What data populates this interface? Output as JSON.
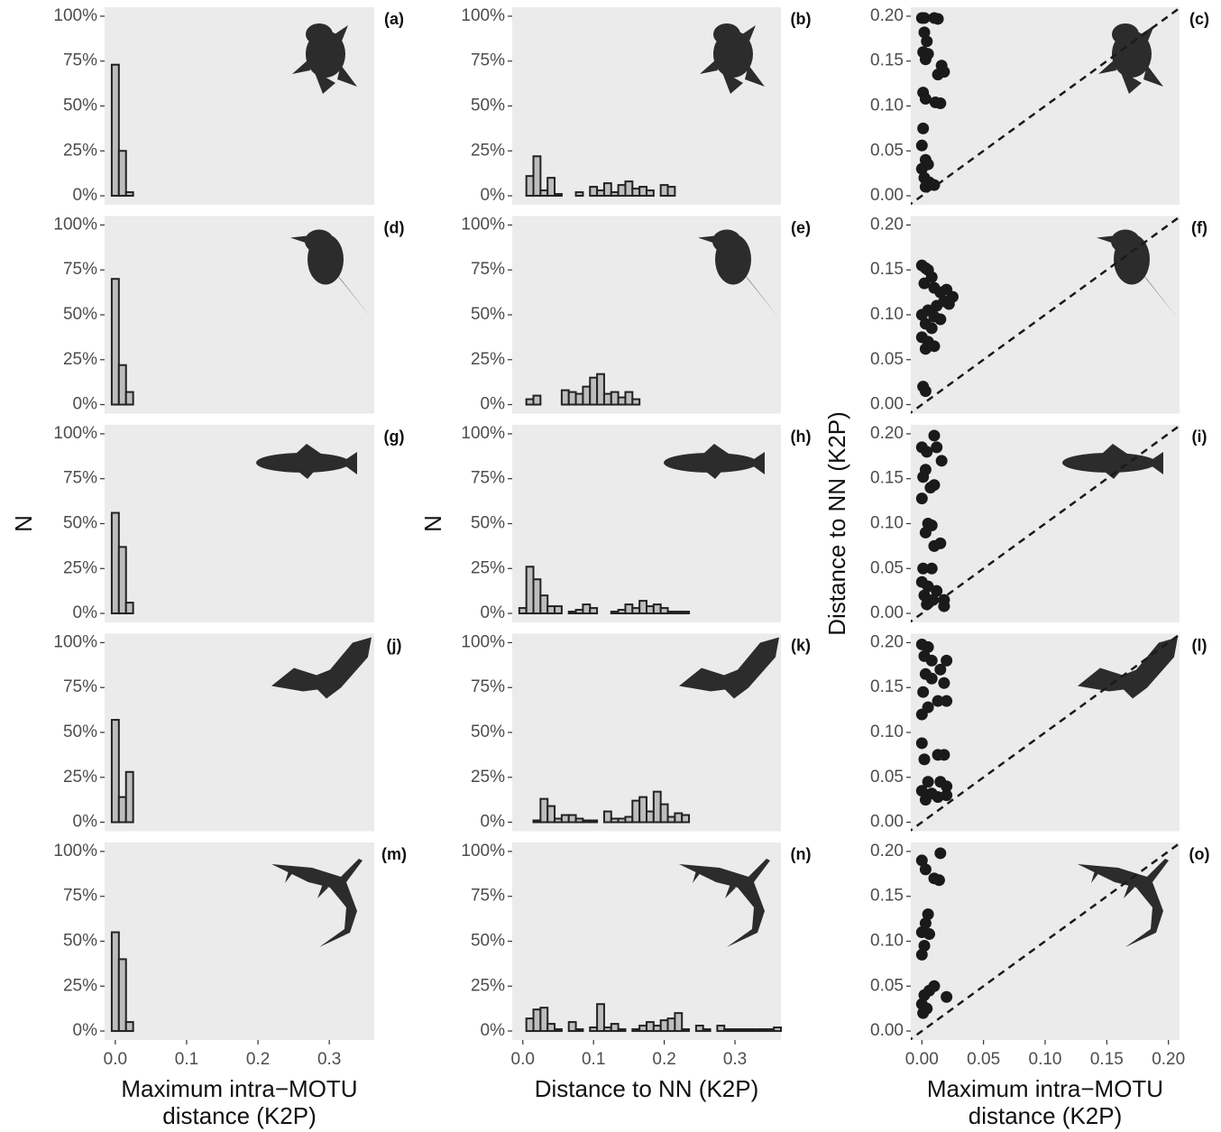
{
  "chart_data": [
    {
      "type": "histogram",
      "panel_label": "(a)",
      "bins": [
        -0.005,
        0.005,
        0.015,
        0.025
      ],
      "values": [
        73,
        25,
        2
      ],
      "color": "#bdbdbd",
      "xlim": [
        -0.015,
        0.363
      ],
      "ylim": [
        -5,
        105
      ],
      "yticks": [
        {
          "value": 0,
          "label": "0%"
        },
        {
          "value": 25,
          "label": "25%"
        },
        {
          "value": 50,
          "label": "50%"
        },
        {
          "value": 75,
          "label": "75%"
        },
        {
          "value": 100,
          "label": "100%"
        }
      ]
    },
    {
      "type": "histogram",
      "panel_label": "(b)",
      "bins": [
        0.005,
        0.015,
        0.025,
        0.035,
        0.045,
        0.055,
        0.065,
        0.075,
        0.085,
        0.095,
        0.105,
        0.115,
        0.125,
        0.135,
        0.145,
        0.155,
        0.165,
        0.175,
        0.185,
        0.195,
        0.205,
        0.215
      ],
      "values": [
        11,
        22,
        3,
        10,
        1,
        0,
        0,
        2,
        0,
        5,
        3,
        7,
        2,
        6,
        8,
        4,
        5,
        3,
        0,
        6,
        5
      ],
      "color": "#bdbdbd",
      "xlim": [
        -0.015,
        0.365
      ],
      "ylim": [
        -5,
        105
      ],
      "yticks": [
        {
          "value": 0,
          "label": "0%"
        },
        {
          "value": 25,
          "label": "25%"
        },
        {
          "value": 50,
          "label": "50%"
        },
        {
          "value": 75,
          "label": "75%"
        },
        {
          "value": 100,
          "label": "100%"
        }
      ]
    },
    {
      "type": "scatter",
      "panel_label": "(c)",
      "x": [
        0.0,
        0.002,
        0.01,
        0.013,
        0.002,
        0.004,
        0.001,
        0.005,
        0.003,
        0.016,
        0.018,
        0.013,
        0.001,
        0.003,
        0.011,
        0.015,
        0.001,
        0.0,
        0.003,
        0.005,
        0.0,
        0.002,
        0.006,
        0.01,
        0.003
      ],
      "y": [
        0.198,
        0.198,
        0.198,
        0.197,
        0.182,
        0.172,
        0.16,
        0.158,
        0.152,
        0.145,
        0.138,
        0.135,
        0.115,
        0.108,
        0.104,
        0.103,
        0.075,
        0.056,
        0.04,
        0.035,
        0.03,
        0.02,
        0.015,
        0.012,
        0.01
      ],
      "color": "#1a1a1a",
      "diagonal": true,
      "xlim": [
        -0.009,
        0.209
      ],
      "ylim": [
        -0.01,
        0.21
      ],
      "yticks": [
        {
          "value": 0,
          "label": "0.00"
        },
        0.05,
        {
          "value": 0.1,
          "label": "0.10"
        },
        0.15,
        {
          "value": 0.2,
          "label": "0.20"
        }
      ]
    },
    {
      "type": "histogram",
      "panel_label": "(d)",
      "bins": [
        -0.005,
        0.005,
        0.015,
        0.025
      ],
      "values": [
        70,
        22,
        7
      ],
      "color": "#bdbdbd",
      "xlim": [
        -0.015,
        0.363
      ],
      "ylim": [
        -5,
        105
      ],
      "yticks": [
        {
          "value": 0,
          "label": "0%"
        },
        {
          "value": 25,
          "label": "25%"
        },
        {
          "value": 50,
          "label": "50%"
        },
        {
          "value": 75,
          "label": "75%"
        },
        {
          "value": 100,
          "label": "100%"
        }
      ]
    },
    {
      "type": "histogram",
      "panel_label": "(e)",
      "bins": [
        0.005,
        0.015,
        0.025,
        0.035,
        0.045,
        0.055,
        0.065,
        0.075,
        0.085,
        0.095,
        0.105,
        0.115,
        0.125,
        0.135,
        0.145,
        0.155,
        0.165
      ],
      "values": [
        3,
        5,
        0,
        0,
        0,
        8,
        7,
        6,
        10,
        15,
        17,
        6,
        7,
        4,
        7,
        3
      ],
      "color": "#bdbdbd",
      "xlim": [
        -0.015,
        0.365
      ],
      "ylim": [
        -5,
        105
      ],
      "yticks": [
        {
          "value": 0,
          "label": "0%"
        },
        {
          "value": 25,
          "label": "25%"
        },
        {
          "value": 50,
          "label": "50%"
        },
        {
          "value": 75,
          "label": "75%"
        },
        {
          "value": 100,
          "label": "100%"
        }
      ]
    },
    {
      "type": "scatter",
      "panel_label": "(f)",
      "x": [
        0.0,
        0.003,
        0.005,
        0.008,
        0.002,
        0.01,
        0.015,
        0.02,
        0.025,
        0.018,
        0.022,
        0.012,
        0.005,
        0.0,
        0.01,
        0.015,
        0.003,
        0.008,
        0.0,
        0.005,
        0.01,
        0.003,
        0.001,
        0.003
      ],
      "y": [
        0.155,
        0.152,
        0.15,
        0.142,
        0.135,
        0.13,
        0.125,
        0.128,
        0.12,
        0.115,
        0.112,
        0.11,
        0.105,
        0.1,
        0.098,
        0.095,
        0.09,
        0.085,
        0.075,
        0.07,
        0.065,
        0.062,
        0.02,
        0.015
      ],
      "color": "#1a1a1a",
      "diagonal": true,
      "xlim": [
        -0.009,
        0.209
      ],
      "ylim": [
        -0.01,
        0.21
      ],
      "yticks": [
        {
          "value": 0,
          "label": "0.00"
        },
        0.05,
        {
          "value": 0.1,
          "label": "0.10"
        },
        0.15,
        {
          "value": 0.2,
          "label": "0.20"
        }
      ]
    },
    {
      "type": "histogram",
      "panel_label": "(g)",
      "ylabel": "N",
      "bins": [
        -0.005,
        0.005,
        0.015,
        0.025
      ],
      "values": [
        56,
        37,
        6
      ],
      "color": "#bdbdbd",
      "xlim": [
        -0.015,
        0.363
      ],
      "ylim": [
        -5,
        105
      ],
      "yticks": [
        {
          "value": 0,
          "label": "0%"
        },
        {
          "value": 25,
          "label": "25%"
        },
        {
          "value": 50,
          "label": "50%"
        },
        {
          "value": 75,
          "label": "75%"
        },
        {
          "value": 100,
          "label": "100%"
        }
      ]
    },
    {
      "type": "histogram",
      "panel_label": "(h)",
      "ylabel": "N",
      "bins": [
        -0.005,
        0.005,
        0.015,
        0.025,
        0.035,
        0.045,
        0.055,
        0.065,
        0.075,
        0.085,
        0.095,
        0.105,
        0.115,
        0.125,
        0.135,
        0.145,
        0.155,
        0.165,
        0.175,
        0.185,
        0.195,
        0.205,
        0.215,
        0.225,
        0.235
      ],
      "values": [
        3,
        26,
        19,
        10,
        4,
        4,
        0,
        1,
        2,
        5,
        3,
        0,
        0,
        1,
        2,
        5,
        3,
        7,
        4,
        5,
        3,
        1,
        1,
        1
      ],
      "color": "#bdbdbd",
      "xlim": [
        -0.015,
        0.365
      ],
      "ylim": [
        -5,
        105
      ],
      "yticks": [
        {
          "value": 0,
          "label": "0%"
        },
        {
          "value": 25,
          "label": "25%"
        },
        {
          "value": 50,
          "label": "50%"
        },
        {
          "value": 75,
          "label": "75%"
        },
        {
          "value": 100,
          "label": "100%"
        }
      ]
    },
    {
      "type": "scatter",
      "panel_label": "(i)",
      "ylabel": "Distance to NN (K2P)",
      "x": [
        0.0,
        0.004,
        0.012,
        0.016,
        0.01,
        0.003,
        0.001,
        0.01,
        0.007,
        0.0,
        0.005,
        0.008,
        0.003,
        0.015,
        0.01,
        0.001,
        0.008,
        0.0,
        0.005,
        0.012,
        0.002,
        0.009,
        0.018,
        0.018,
        0.004
      ],
      "y": [
        0.185,
        0.18,
        0.185,
        0.17,
        0.198,
        0.16,
        0.152,
        0.143,
        0.14,
        0.128,
        0.1,
        0.098,
        0.09,
        0.078,
        0.075,
        0.05,
        0.05,
        0.035,
        0.03,
        0.025,
        0.02,
        0.015,
        0.015,
        0.008,
        0.01
      ],
      "color": "#1a1a1a",
      "diagonal": true,
      "xlim": [
        -0.009,
        0.209
      ],
      "ylim": [
        -0.01,
        0.21
      ],
      "yticks": [
        {
          "value": 0,
          "label": "0.00"
        },
        0.05,
        {
          "value": 0.1,
          "label": "0.10"
        },
        0.15,
        {
          "value": 0.2,
          "label": "0.20"
        }
      ]
    },
    {
      "type": "histogram",
      "panel_label": "(j)",
      "bins": [
        -0.005,
        0.005,
        0.015,
        0.025
      ],
      "values": [
        57,
        14,
        28
      ],
      "color": "#bdbdbd",
      "xlim": [
        -0.015,
        0.363
      ],
      "ylim": [
        -5,
        105
      ],
      "yticks": [
        {
          "value": 0,
          "label": "0%"
        },
        {
          "value": 25,
          "label": "25%"
        },
        {
          "value": 50,
          "label": "50%"
        },
        {
          "value": 75,
          "label": "75%"
        },
        {
          "value": 100,
          "label": "100%"
        }
      ]
    },
    {
      "type": "histogram",
      "panel_label": "(k)",
      "bins": [
        0.015,
        0.025,
        0.035,
        0.045,
        0.055,
        0.065,
        0.075,
        0.085,
        0.095,
        0.105,
        0.115,
        0.125,
        0.135,
        0.145,
        0.155,
        0.165,
        0.175,
        0.185,
        0.195,
        0.205,
        0.215,
        0.225,
        0.235
      ],
      "values": [
        1,
        13,
        9,
        2,
        4,
        4,
        2,
        1,
        1,
        0,
        6,
        2,
        2,
        3,
        12,
        14,
        6,
        17,
        10,
        3,
        5,
        4
      ],
      "color": "#bdbdbd",
      "xlim": [
        -0.015,
        0.365
      ],
      "ylim": [
        -5,
        105
      ],
      "yticks": [
        {
          "value": 0,
          "label": "0%"
        },
        {
          "value": 25,
          "label": "25%"
        },
        {
          "value": 50,
          "label": "50%"
        },
        {
          "value": 75,
          "label": "75%"
        },
        {
          "value": 100,
          "label": "100%"
        }
      ]
    },
    {
      "type": "scatter",
      "panel_label": "(l)",
      "x": [
        0.0,
        0.005,
        0.002,
        0.008,
        0.02,
        0.015,
        0.003,
        0.008,
        0.018,
        0.001,
        0.013,
        0.02,
        0.005,
        0.0,
        0.0,
        0.013,
        0.018,
        0.002,
        0.005,
        0.015,
        0.02,
        0.0,
        0.008,
        0.02,
        0.013,
        0.003
      ],
      "y": [
        0.198,
        0.195,
        0.185,
        0.18,
        0.18,
        0.17,
        0.165,
        0.16,
        0.155,
        0.145,
        0.135,
        0.135,
        0.128,
        0.12,
        0.088,
        0.075,
        0.075,
        0.07,
        0.045,
        0.045,
        0.04,
        0.035,
        0.032,
        0.03,
        0.028,
        0.025
      ],
      "color": "#1a1a1a",
      "diagonal": true,
      "xlim": [
        -0.009,
        0.209
      ],
      "ylim": [
        -0.01,
        0.21
      ],
      "yticks": [
        {
          "value": 0,
          "label": "0.00"
        },
        0.05,
        {
          "value": 0.1,
          "label": "0.10"
        },
        0.15,
        {
          "value": 0.2,
          "label": "0.20"
        }
      ]
    },
    {
      "type": "histogram",
      "panel_label": "(m)",
      "xlabel": [
        "Maximum intra−MOTU",
        "distance (K2P)"
      ],
      "bins": [
        -0.005,
        0.005,
        0.015,
        0.025
      ],
      "values": [
        55,
        40,
        5
      ],
      "color": "#bdbdbd",
      "xlim": [
        -0.015,
        0.363
      ],
      "ylim": [
        -5,
        105
      ],
      "xticks": [
        {
          "value": 0,
          "label": "0.0"
        },
        0.1,
        0.2,
        0.3
      ],
      "yticks": [
        {
          "value": 0,
          "label": "0%"
        },
        {
          "value": 25,
          "label": "25%"
        },
        {
          "value": 50,
          "label": "50%"
        },
        {
          "value": 75,
          "label": "75%"
        },
        {
          "value": 100,
          "label": "100%"
        }
      ]
    },
    {
      "type": "histogram",
      "panel_label": "(n)",
      "xlabel": [
        "Distance to NN (K2P)"
      ],
      "bins": [
        0.005,
        0.015,
        0.025,
        0.035,
        0.045,
        0.055,
        0.065,
        0.075,
        0.085,
        0.095,
        0.105,
        0.115,
        0.125,
        0.135,
        0.145,
        0.155,
        0.165,
        0.175,
        0.185,
        0.195,
        0.205,
        0.215,
        0.225,
        0.235,
        0.245,
        0.255,
        0.265,
        0.275,
        0.285,
        0.295,
        0.305,
        0.315,
        0.325,
        0.335,
        0.345,
        0.355,
        0.365
      ],
      "values": [
        7,
        12,
        13,
        4,
        1,
        0,
        5,
        1,
        0,
        2,
        15,
        2,
        4,
        1,
        0,
        1,
        3,
        5,
        3,
        6,
        7,
        10,
        1,
        0,
        3,
        1,
        0,
        3,
        1,
        1,
        1,
        1,
        1,
        1,
        1,
        2
      ],
      "color": "#bdbdbd",
      "xlim": [
        -0.015,
        0.365
      ],
      "ylim": [
        -5,
        105
      ],
      "xticks": [
        {
          "value": 0,
          "label": "0.0"
        },
        0.1,
        0.2,
        0.3
      ],
      "yticks": [
        {
          "value": 0,
          "label": "0%"
        },
        {
          "value": 25,
          "label": "25%"
        },
        {
          "value": 50,
          "label": "50%"
        },
        {
          "value": 75,
          "label": "75%"
        },
        {
          "value": 100,
          "label": "100%"
        }
      ]
    },
    {
      "type": "scatter",
      "panel_label": "(o)",
      "xlabel": [
        "Maximum intra−MOTU",
        "distance (K2P)"
      ],
      "x": [
        0.0,
        0.003,
        0.015,
        0.01,
        0.014,
        0.005,
        0.003,
        0.0,
        0.006,
        0.002,
        0.0,
        0.01,
        0.006,
        0.002,
        0.02,
        0.0,
        0.004,
        0.001
      ],
      "y": [
        0.19,
        0.18,
        0.198,
        0.17,
        0.168,
        0.13,
        0.12,
        0.11,
        0.108,
        0.095,
        0.085,
        0.05,
        0.045,
        0.04,
        0.038,
        0.03,
        0.025,
        0.02
      ],
      "color": "#1a1a1a",
      "diagonal": true,
      "xlim": [
        -0.009,
        0.209
      ],
      "ylim": [
        -0.01,
        0.21
      ],
      "xticks": [
        {
          "value": 0,
          "label": "0.00"
        },
        0.05,
        {
          "value": 0.1,
          "label": "0.10"
        },
        0.15,
        {
          "value": 0.2,
          "label": "0.20"
        }
      ],
      "yticks": [
        {
          "value": 0,
          "label": "0.00"
        },
        0.05,
        {
          "value": 0.1,
          "label": "0.10"
        },
        0.15,
        {
          "value": 0.2,
          "label": "0.20"
        }
      ]
    }
  ]
}
